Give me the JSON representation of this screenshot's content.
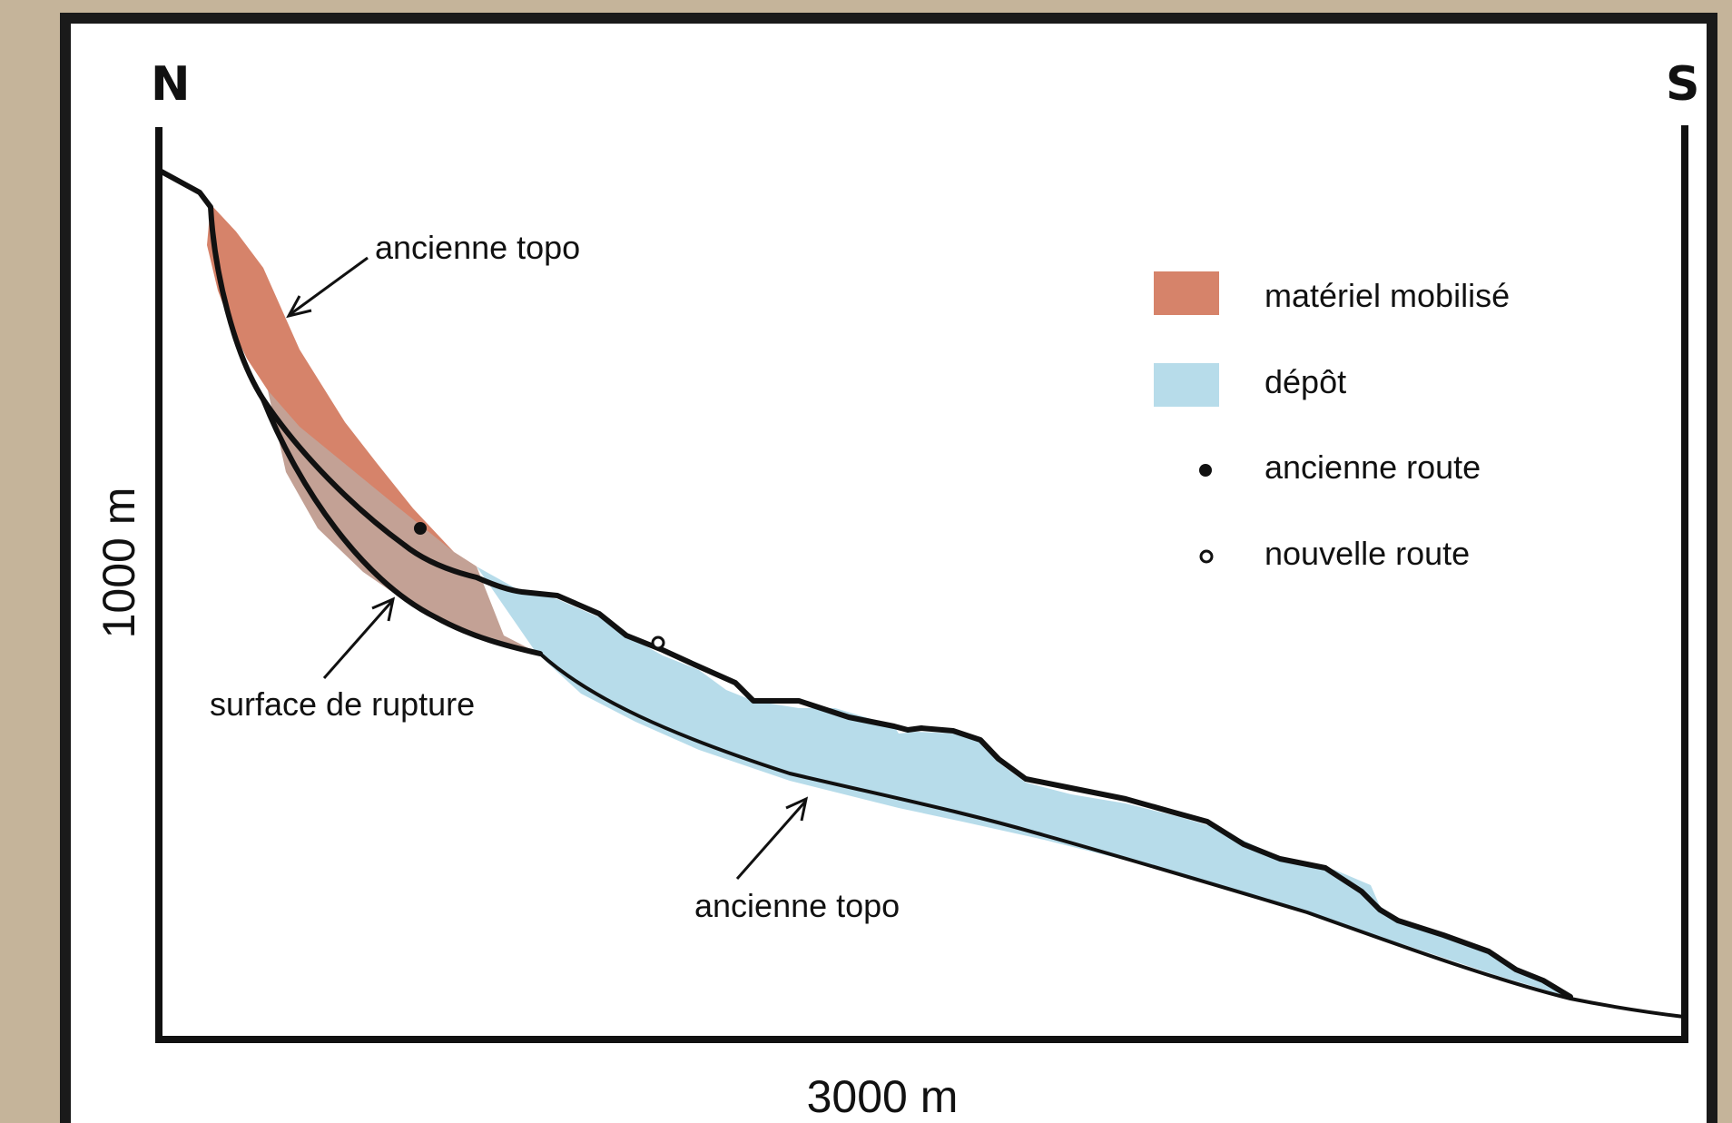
{
  "orientation": {
    "north": "N",
    "south": "S"
  },
  "axes": {
    "vertical_scale": "1000 m",
    "horizontal_scale": "3000 m"
  },
  "annotations": {
    "old_topo_top": "ancienne topo",
    "rupture_surface": "surface de rupture",
    "old_topo_bottom": "ancienne topo"
  },
  "legend": {
    "items": [
      {
        "label": "matériel mobilisé",
        "swatch": "#d6836a"
      },
      {
        "label": "dépôt",
        "swatch": "#b7dcea"
      },
      {
        "label": "ancienne route",
        "marker": "filled-dot"
      },
      {
        "label": "nouvelle route",
        "marker": "open-dot"
      }
    ]
  },
  "colors": {
    "mobilized": "#d6836a",
    "deposit": "#b7dcea",
    "overlap": "#c3a195",
    "outline": "#111111",
    "frame_bg": "#c5b49a"
  }
}
